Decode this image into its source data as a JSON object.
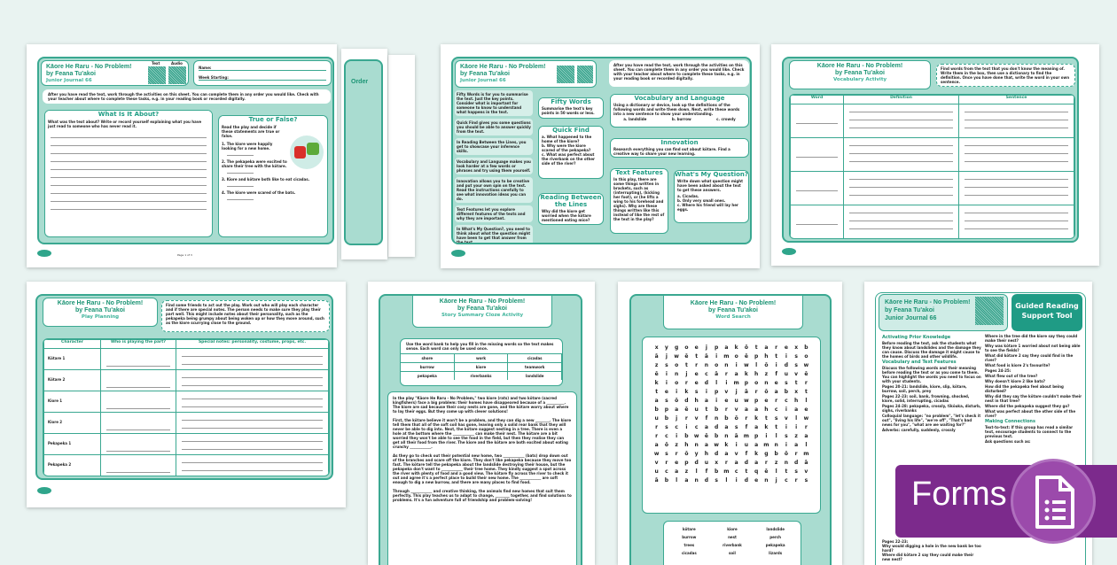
{
  "title": "Kāore He Raru - No Problem!",
  "author": "by Feana Tu'akoi",
  "journal": "Junior Journal 66",
  "p1": {
    "qr_labels": [
      "Text",
      "Audio"
    ],
    "name_label": "Name:",
    "week_label": "Week Starting:",
    "intro": "After you have read the text, work through the activities on this sheet. You can complete them in any order you would like. Check with your teacher about where to complete these tasks, e.g. in your reading book or recorded digitally.",
    "what_title": "What Is It About?",
    "what_prompt": "What was the text about? Write or record yourself explaining what you have just read to someone who has never read it.",
    "tf_title": "True or False?",
    "tf_prompt": "Read the play and decide if these statements are true or false.",
    "tf_items": [
      "1. The kiore were happily looking for a new home.",
      "2. The pekapeka were excited to share their tree with the kōtare.",
      "3. Kiore and kōtare both like to eat cicadas.",
      "4. The kiore were scared of the bats."
    ],
    "page": "Page 1 of 3",
    "behind_title": "Order"
  },
  "p2": {
    "intro": "After you have read the text, work through the activities on this sheet. You can complete them in any order you would like. Check with your teacher about where to complete these tasks, e.g. in your reading book or recorded digitally.",
    "guide": [
      "Fifty Words is for you to summarise the text. Just the key points. Consider what is important for someone to know to understand what happens in the text.",
      "Quick Find gives you some questions you should be able to answer quickly from the text.",
      "In Reading Between the Lines, you get to showcase your inference skills.",
      "Vocabulary and Language makes you look harder at a few words or phrases and try using them yourself.",
      "Innovation allows you to be creative and put your own spin on the text. Read the instructions carefully to see what innovation ideas you can do.",
      "Text Features let you explore different features of the texts and why they are important.",
      "In What's My Question?, you need to think about what the question might have been to get that answer from the text."
    ],
    "fifty_title": "Fifty Words",
    "fifty_text": "Summarise the text's key points in 50 words or less.",
    "quick_title": "Quick Find",
    "quick_items": [
      "a. What happened to the home of the kiore?",
      "b. Why were the kiore scared of the pekapeka?",
      "c. What was perfect about the riverbank on the other side of the river?"
    ],
    "rbl_title": "Reading Between the Lines",
    "rbl_text": "Why did the kiore get worried when the kōtare mentioned eating mice?",
    "vocab_title": "Vocabulary and Language",
    "vocab_text": "Using a dictionary or device, look up the definitions of the following words and write them down. Next, write these words into a new sentence to show your understanding.",
    "vocab_words": [
      "a. landslide",
      "b. burrow",
      "c. crowdy"
    ],
    "innov_title": "Innovation",
    "innov_text": "Research everything you can find out about kōtare. Find a creative way to share your new learning.",
    "tf_title": "Text Features",
    "tf_text": "In this play, there are some things written in brackets, such as (interrupting), (kicking her foot), or (he lifts a wing to his forehead and sighs). Why are these things written like this instead of like the rest of the text in the play?",
    "wmq_title": "What's My Question?",
    "wmq_text": "Write down what question might have been asked about the text to get these answers.",
    "wmq_items": [
      "a. Cicadas.",
      "b. Only very small ones.",
      "c. Where his friend will lay her eggs."
    ]
  },
  "p3": {
    "subtitle": "Vocabulary Activity",
    "instructions": "Find words from the text that you don't know the meaning of. Write them in the box, then use a dictionary to find the definition. Once you have done that, write the word in your own sentence.",
    "headers": [
      "Word",
      "Definition",
      "Sentence"
    ]
  },
  "p4": {
    "subtitle": "Play Planning",
    "instructions": "Find some friends to act out the play. Work out who will play each character and if there are special notes. The person needs to make sure they play their part well. This might include notes about their personality, such as the pekapeka being grumpy about being woken up or how they move around, such as the kiore scurrying close to the ground.",
    "headers": [
      "Character",
      "Who is playing the part?",
      "Special notes: personality, costume, props, etc."
    ],
    "rows": [
      "Kōtare 1",
      "Kōtare 2",
      "Kiore 1",
      "Kiore 2",
      "Pekapeka 1",
      "Pekapeka 2"
    ]
  },
  "p5": {
    "subtitle": "Story Summary Cloze Activity",
    "instructions": "Use the word bank to help you fill in the missing words so the text makes sense. Each word can only be used once.",
    "bank": [
      "shore",
      "work",
      "cicadas",
      "burrow",
      "kiore",
      "teamwork",
      "pekapeka",
      "riverbanks",
      "landslide"
    ],
    "paragraphs": [
      "In the play \"Kāore He Raru - No Problem,\" two kiore (rats) and two kōtare (sacred kingfishers) face a big problem: their homes have disappeared because of a __________. The kiore are sad because their cosy nests are gone, and the kōtare worry about where to lay their eggs. But they come up with clever solutions!",
      "First, the kōtare believe it won't be a problem, and they can dig a new ________. The kiore tell them that all of the soft soil has gone, leaving only a solid rear bank that they will never be able to dig into. Next, the kōtare suggest nesting in a tree. There is even a hole at the bottom where the ____________ can make their nest. The kōtare are a bit worried they won't be able to see the food in the field, but then they realise they can get all their food from the river. The kiore and the kōtare are both excited about eating crunchy ____________.",
      "As they go to check out their potential new home, two ____________ (bats) drop down out of the branches and scare off the kiore. They don't like pekapeka because they move too fast. The kōtare tell the pekapeka about the landslide destroying their house, but the pekapeka don't want to ____________ their tree home. They kindly suggest a spot across the river with plenty of food and a good view. The kōtare fly across the river to check it out and agree it's a perfect place to build their new home. The ____________ are soft enough to dig a new burrow, and there are many places to find food.",
      "Through ____________ and creative thinking, the animals find new homes that suit them perfectly. This play teaches us to adapt to change, ________ together, and find solutions to problems. It's a fun adventure full of friendship and problem-solving!"
    ]
  },
  "p6": {
    "subtitle": "Word Search",
    "grid": [
      "xygoejpakōtarexb",
      "ājwētāimoēphtiso",
      "zsotrnoniwlōidsw",
      "ēinjecārakhzfuvē",
      "kioredlimponestr",
      "teiksipvjārōabxt",
      "asōdhaieuwperchl",
      "bpaēutbrvaahciae",
      "ubjrvfnbōrktsvlw",
      "rscicadasfaktiir",
      "rcibwēbnāmpilsza",
      "aōzhnawkiuamnial",
      "wsrōyhdavfkgbōrm",
      "vrepduxradarzndā",
      "ucazlfbmctqēltsv",
      "āblandslidenjcrs"
    ],
    "words": [
      "kōtare",
      "kiore",
      "landslide",
      "burrow",
      "nest",
      "perch",
      "trees",
      "riverbank",
      "pekapeka",
      "cicadas",
      "soil",
      "lizards"
    ]
  },
  "p7": {
    "badge": "Guided Reading Support Tool",
    "left": [
      {
        "h": "Activating Prior Knowledge",
        "p": [
          "Before reading the text, ask the students what they know about landslides and the damage they can cause. Discuss the damage it might cause to the homes of birds and other wildlife."
        ]
      },
      {
        "h": "Vocabulary and Text Features",
        "p": [
          "Discuss the following words and their meaning before reading the text or as you come to them. You can highlight the words you need to focus on with your students.",
          "Pages 20-21: landslide, kiore, slip, kōtare, burrow, soil, perch, prey",
          "Pages 22-23: soil, bank, frowning, shocked, kiore, solid, interrupting, cicadas",
          "Pages 24-28: pekapeka, crossly, tīkōuka, disturb, sighs, riverbanks",
          "Colloquial language: \"no problem\", \"let's check it out\", \"living his life\", \"we're off\", \"That's bad news for you\", \"what are we waiting for?\"",
          "Adverbs: carefully, suddenly, crossly"
        ]
      }
    ],
    "right": [
      {
        "h": "",
        "p": [
          "Where in the tree did the kiore say they could make their nest?",
          "Why was kōtare 1 worried about not being able to see the fields?",
          "What did kōtare 2 say they could find in the river?",
          "What food is kiore 2's favourite?",
          "Pages 24-25:",
          "What flew out of the tree?",
          "Why doesn't kiore 2 like bats?",
          "How did the pekapeka feel about being disturbed?",
          "Why did they say the kōtare couldn't make their nest in that tree?",
          "Where did the pekapeka suggest they go?",
          "What was perfect about the other side of the river?"
        ]
      },
      {
        "h": "Making Connections",
        "p": [
          "Text-to-text: If this group has read a similar text, encourage students to connect to the previous text.",
          "Ask questions such as:"
        ]
      }
    ],
    "hidden_bottom": [
      "Pages 22-23:",
      "Why would digging a hole in the new bank be too hard?",
      "Where did kōtare 2 say they could make their new nest?"
    ]
  },
  "forms": {
    "label": "Forms",
    "color": "#7c2a8c",
    "icon": "google-forms-document-list-icon"
  },
  "colors": {
    "teal_frame": "#3aa891",
    "teal_light": "#a9dcd0",
    "title_green": "#1b9474"
  }
}
